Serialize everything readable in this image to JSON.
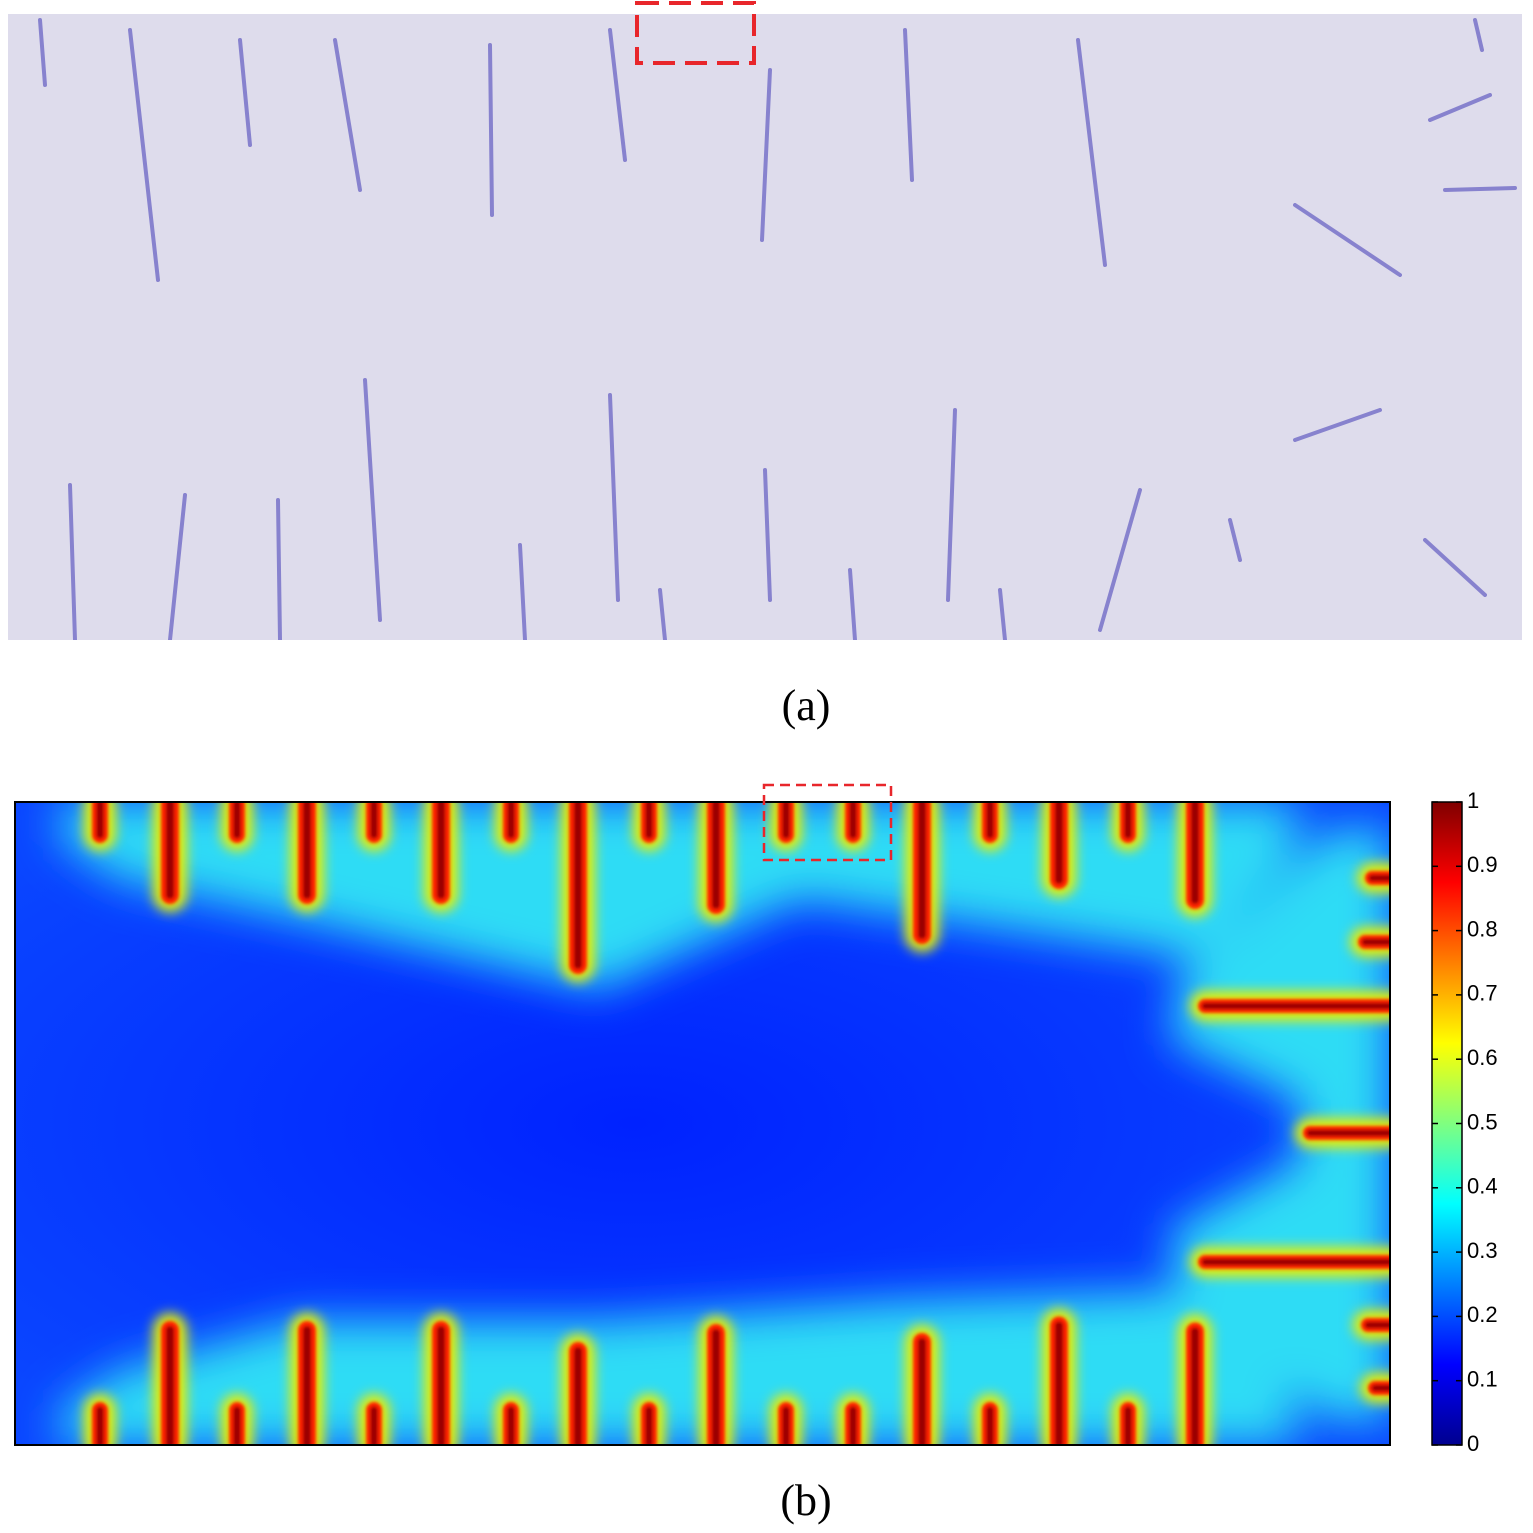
{
  "panels": [
    {
      "label": "(a)"
    },
    {
      "label": "(b)"
    }
  ],
  "colorbar": {
    "lim": [
      0,
      1
    ],
    "ticks": [
      0,
      0.1,
      0.2,
      0.3,
      0.4,
      0.5,
      0.6,
      0.7,
      0.8,
      0.9,
      1
    ]
  }
}
